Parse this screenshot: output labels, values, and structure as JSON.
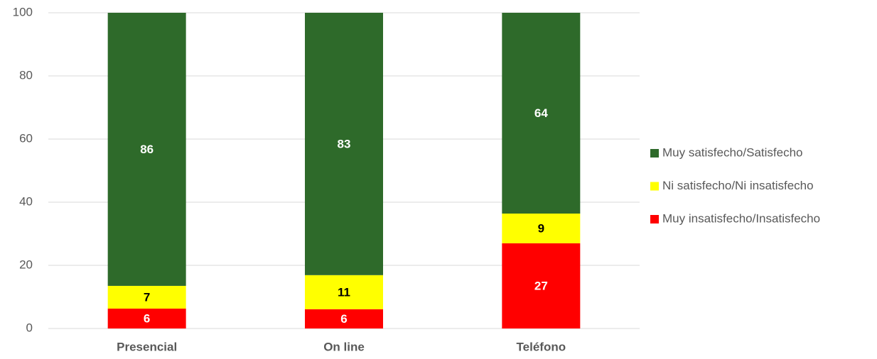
{
  "chart_data": {
    "type": "stacked_bar",
    "categories": [
      "Presencial",
      "On line",
      "Teléfono"
    ],
    "series": [
      {
        "name": "Muy insatisfecho/Insatisfecho",
        "color": "#ff0000",
        "label_color": "#ffffff",
        "values": [
          6.3,
          6.1,
          27.0
        ],
        "value_labels": [
          "6",
          "6",
          "27"
        ]
      },
      {
        "name": "Ni satisfecho/Ni insatisfecho",
        "color": "#ffff00",
        "label_color": "#000000",
        "values": [
          7.2,
          10.8,
          9.4
        ],
        "value_labels": [
          "7",
          "11",
          "9"
        ]
      },
      {
        "name": "Muy satisfecho/Satisfecho",
        "color": "#2e6a2a",
        "label_color": "#ffffff",
        "values": [
          86.5,
          83.1,
          63.6
        ],
        "value_labels": [
          "86",
          "83",
          "64"
        ]
      }
    ],
    "ylim": [
      0,
      100
    ],
    "yticks": [
      0,
      20,
      40,
      60,
      80,
      100
    ],
    "grid": true,
    "legend": "right"
  }
}
